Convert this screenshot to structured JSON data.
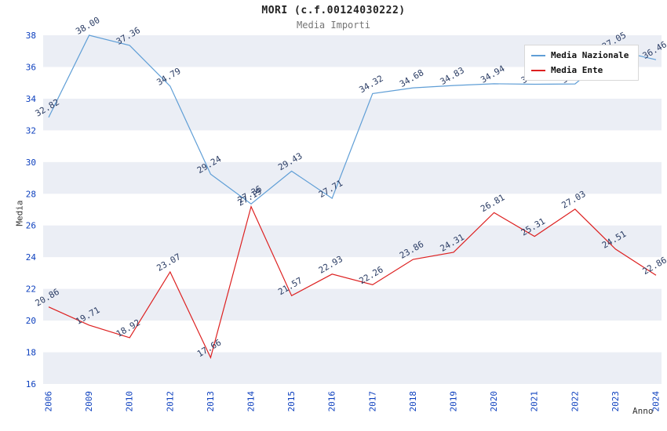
{
  "chart": {
    "title": "MORI (c.f.00124030222)",
    "subtitle": "Media Importi",
    "xlabel": "Anno",
    "ylabel": "Media"
  },
  "chart_data": {
    "type": "line",
    "categories": [
      "2006",
      "2009",
      "2010",
      "2012",
      "2013",
      "2014",
      "2015",
      "2016",
      "2017",
      "2018",
      "2019",
      "2020",
      "2021",
      "2022",
      "2023",
      "2024"
    ],
    "series": [
      {
        "name": "Media Nazionale",
        "color": "#5f9ed6",
        "values": [
          32.82,
          38.0,
          37.36,
          34.79,
          29.24,
          27.36,
          29.43,
          27.71,
          34.32,
          34.68,
          34.83,
          34.94,
          34.91,
          34.93,
          37.05,
          36.46
        ]
      },
      {
        "name": "Media Ente",
        "color": "#dd2020",
        "values": [
          20.86,
          19.71,
          18.92,
          23.07,
          17.66,
          27.19,
          21.57,
          22.93,
          22.26,
          23.86,
          24.31,
          26.81,
          25.31,
          27.03,
          24.51,
          22.86
        ]
      }
    ],
    "ylim": [
      16,
      38
    ],
    "ytick_step": 2,
    "grid": "horizontal-bands",
    "legend_position": "top-right",
    "point_label_format": "2-decimals",
    "point_label_rotation_deg": -30
  },
  "colors": {
    "band": "#ebeef5",
    "tick_label": "#0c3fbe",
    "data_label": "#2a3c64",
    "background": "#ffffff"
  }
}
